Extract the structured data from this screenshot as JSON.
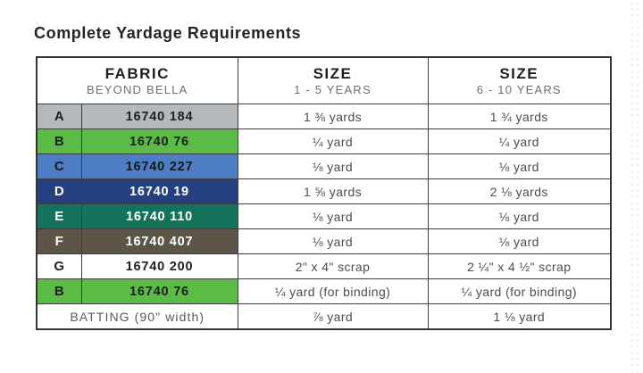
{
  "page": {
    "title": "Complete Yardage Requirements"
  },
  "table": {
    "header": {
      "fabric_title": "FABRIC",
      "fabric_subtitle": "BEYOND BELLA",
      "size_small_title": "SIZE",
      "size_small_subtitle": "1 - 5 YEARS",
      "size_large_title": "SIZE",
      "size_large_subtitle": "6 - 10 YEARS"
    },
    "rows": [
      {
        "letter": "A",
        "fabric_number": "16740 184",
        "size_small": "1 ⅜ yards",
        "size_large": "1 ¾ yards",
        "swatch_color": "#b6b9bb",
        "text_color": "#1f2022"
      },
      {
        "letter": "B",
        "fabric_number": "16740 76",
        "size_small": "¼ yard",
        "size_large": "¼ yard",
        "swatch_color": "#5cba47",
        "text_color": "#1f2022"
      },
      {
        "letter": "C",
        "fabric_number": "16740 227",
        "size_small": "⅛ yard",
        "size_large": "⅛ yard",
        "swatch_color": "#4d7dc2",
        "text_color": "#16181c"
      },
      {
        "letter": "D",
        "fabric_number": "16740 19",
        "size_small": "1 ⅝ yards",
        "size_large": "2 ⅛ yards",
        "swatch_color": "#263f7e",
        "text_color": "#ffffff"
      },
      {
        "letter": "E",
        "fabric_number": "16740 110",
        "size_small": "⅛ yard",
        "size_large": "⅛ yard",
        "swatch_color": "#15725a",
        "text_color": "#ffffff"
      },
      {
        "letter": "F",
        "fabric_number": "16740 407",
        "size_small": "⅛ yard",
        "size_large": "⅛ yard",
        "swatch_color": "#5d5548",
        "text_color": "#ffffff"
      },
      {
        "letter": "G",
        "fabric_number": "16740 200",
        "size_small": "2\" x 4\" scrap",
        "size_large": "2 ¼\" x 4 ½\" scrap",
        "swatch_color": "#ffffff",
        "text_color": "#1f2022"
      },
      {
        "letter": "B",
        "fabric_number": "16740 76",
        "size_small": "¼ yard (for binding)",
        "size_large": "¼ yard (for binding)",
        "swatch_color": "#5cba47",
        "text_color": "#1f2022"
      }
    ],
    "batting_row": {
      "label": "BATTING (90\" width)",
      "size_small": "⅞ yard",
      "size_large": "1 ⅛ yard"
    }
  }
}
